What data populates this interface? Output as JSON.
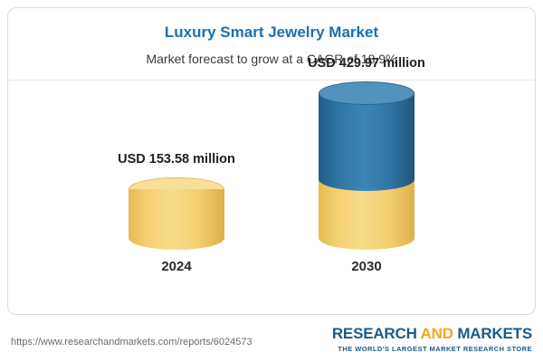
{
  "header": {
    "title": "Luxury Smart Jewelry Market",
    "subtitle": "Market forecast to grow at a CAGR of 18.9%"
  },
  "chart_data": {
    "type": "bar",
    "subtype": "3d-cylinder-stacked",
    "title": "Luxury Smart Jewelry Market",
    "subtitle": "Market forecast to grow at a CAGR of 18.9%",
    "cagr_percent": 18.9,
    "unit": "USD million",
    "categories": [
      "2024",
      "2030"
    ],
    "values": [
      153.58,
      429.97
    ],
    "bars": [
      {
        "category": "2024",
        "value": 153.58,
        "label": "USD 153.58 million",
        "segments": [
          {
            "color": "#f2cf6f",
            "value": 153.58
          }
        ]
      },
      {
        "category": "2030",
        "value": 429.97,
        "label": "USD 429.97 million",
        "segments": [
          {
            "color": "#f2cf6f",
            "value": 153.58
          },
          {
            "color": "#2f74a5",
            "value": 276.39
          }
        ]
      }
    ],
    "ylim": [
      0,
      450
    ],
    "grid": false,
    "legend": false
  },
  "footer": {
    "url": "https://www.researchandmarkets.com/reports/6024573",
    "logo": {
      "line1_part1": "RESEARCH",
      "line1_part2": "AND",
      "line1_part3": "MARKETS",
      "tagline": "THE WORLD'S LARGEST MARKET RESEARCH STORE"
    }
  },
  "colors": {
    "title_blue": "#1a70ad",
    "bar_yellow": "#f2cf6f",
    "bar_blue": "#2f74a5",
    "logo_blue": "#1b5a8c",
    "logo_orange": "#f0a81e",
    "card_border": "#d9dce0"
  }
}
